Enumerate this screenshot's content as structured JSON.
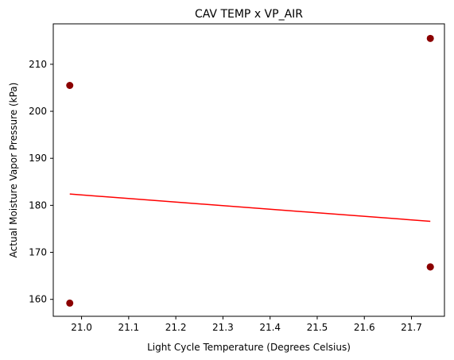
{
  "chart_data": {
    "type": "scatter",
    "title": "CAV TEMP x VP_AIR",
    "xlabel": "Light Cycle Temperature (Degrees Celsius)",
    "ylabel": "Actual Moisture Vapor Pressure (kPa)",
    "xlim": [
      20.94,
      21.77
    ],
    "ylim": [
      156.4,
      218.6
    ],
    "xticks": [
      "21.0",
      "21.1",
      "21.2",
      "21.3",
      "21.4",
      "21.5",
      "21.6",
      "21.7"
    ],
    "yticks": [
      "160",
      "170",
      "180",
      "190",
      "200",
      "210"
    ],
    "grid": false,
    "colors": {
      "points": "#8b0000",
      "trendline": "#ff0000"
    },
    "points": [
      {
        "x": 20.975,
        "y": 205.5
      },
      {
        "x": 20.975,
        "y": 159.2
      },
      {
        "x": 21.74,
        "y": 215.5
      },
      {
        "x": 21.74,
        "y": 166.9
      },
      {
        "x": 21.74,
        "y": 166.9
      }
    ],
    "trendline": [
      {
        "x": 20.975,
        "y": 182.4
      },
      {
        "x": 21.74,
        "y": 176.6
      }
    ]
  }
}
